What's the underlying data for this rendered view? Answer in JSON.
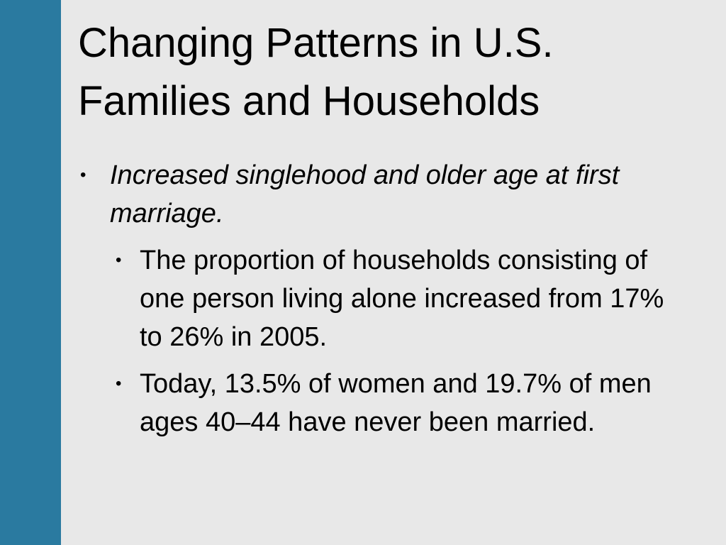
{
  "title": "Changing Patterns in U.S. Families and Households",
  "bullets": [
    {
      "text": "Increased singlehood and older age at first marriage.",
      "sub": [
        "The proportion of households consisting of one person living alone increased from 17% to 26% in 2005.",
        "Today, 13.5% of women and 19.7% of men ages 40–44 have never been married."
      ]
    }
  ]
}
